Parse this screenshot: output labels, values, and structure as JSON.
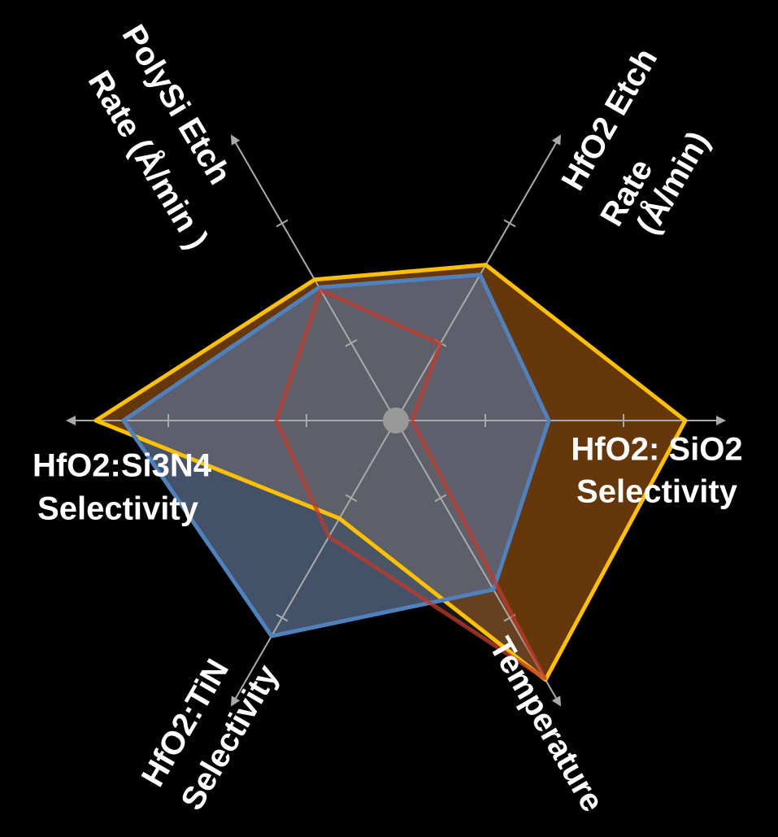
{
  "chart_data": {
    "type": "radar",
    "axes": [
      [
        "HfO2: SiO2",
        "Selectivity"
      ],
      [
        "HfO2 Etch",
        "Rate",
        "(Å/min)"
      ],
      [
        "PolySi Etch",
        "Rate (Å/min )"
      ],
      [
        "HfO2:Si3N4",
        "Selectivity"
      ],
      [
        "HfO2:TiN",
        "Selectivity"
      ],
      [
        "Temperature"
      ]
    ],
    "rlim": [
      0,
      4
    ],
    "rticks": [
      1.1,
      2.8
    ],
    "series": [
      {
        "color": "#ffc000",
        "fill": "#8a4a10",
        "values": [
          3.56,
          2.21,
          2.0,
          3.69,
          1.39,
          3.68
        ]
      },
      {
        "color": "#4f81bd",
        "fill": "#5a6e8c",
        "values": [
          1.88,
          2.07,
          1.89,
          3.35,
          3.06,
          2.4
        ]
      },
      {
        "color": "#c0392b",
        "fill": "#606060",
        "values": [
          0.2,
          1.09,
          1.85,
          1.47,
          1.65,
          3.66
        ]
      }
    ]
  }
}
